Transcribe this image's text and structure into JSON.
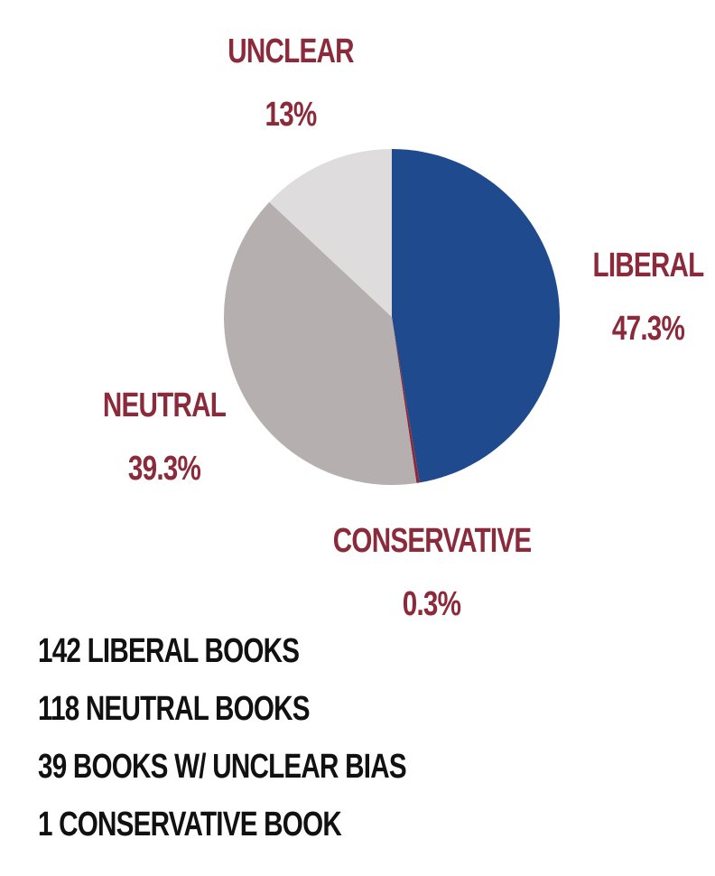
{
  "chart_data": {
    "type": "pie",
    "slices": [
      {
        "label": "LIBERAL",
        "value": 47.3,
        "value_label": "47.3%",
        "color": "#1f4b8e"
      },
      {
        "label": "CONSERVATIVE",
        "value": 0.3,
        "value_label": "0.3%",
        "color": "#8b2a3a"
      },
      {
        "label": "NEUTRAL",
        "value": 39.3,
        "value_label": "39.3%",
        "color": "#b5afb0"
      },
      {
        "label": "UNCLEAR",
        "value": 13,
        "value_label": "13%",
        "color": "#dedcdd"
      }
    ],
    "label_color": "#8b2a3a"
  },
  "summary": {
    "lines": [
      "142 LIBERAL BOOKS",
      "118 NEUTRAL BOOKS",
      "39 BOOKS W/ UNCLEAR BIAS",
      "1 CONSERVATIVE BOOK"
    ]
  }
}
